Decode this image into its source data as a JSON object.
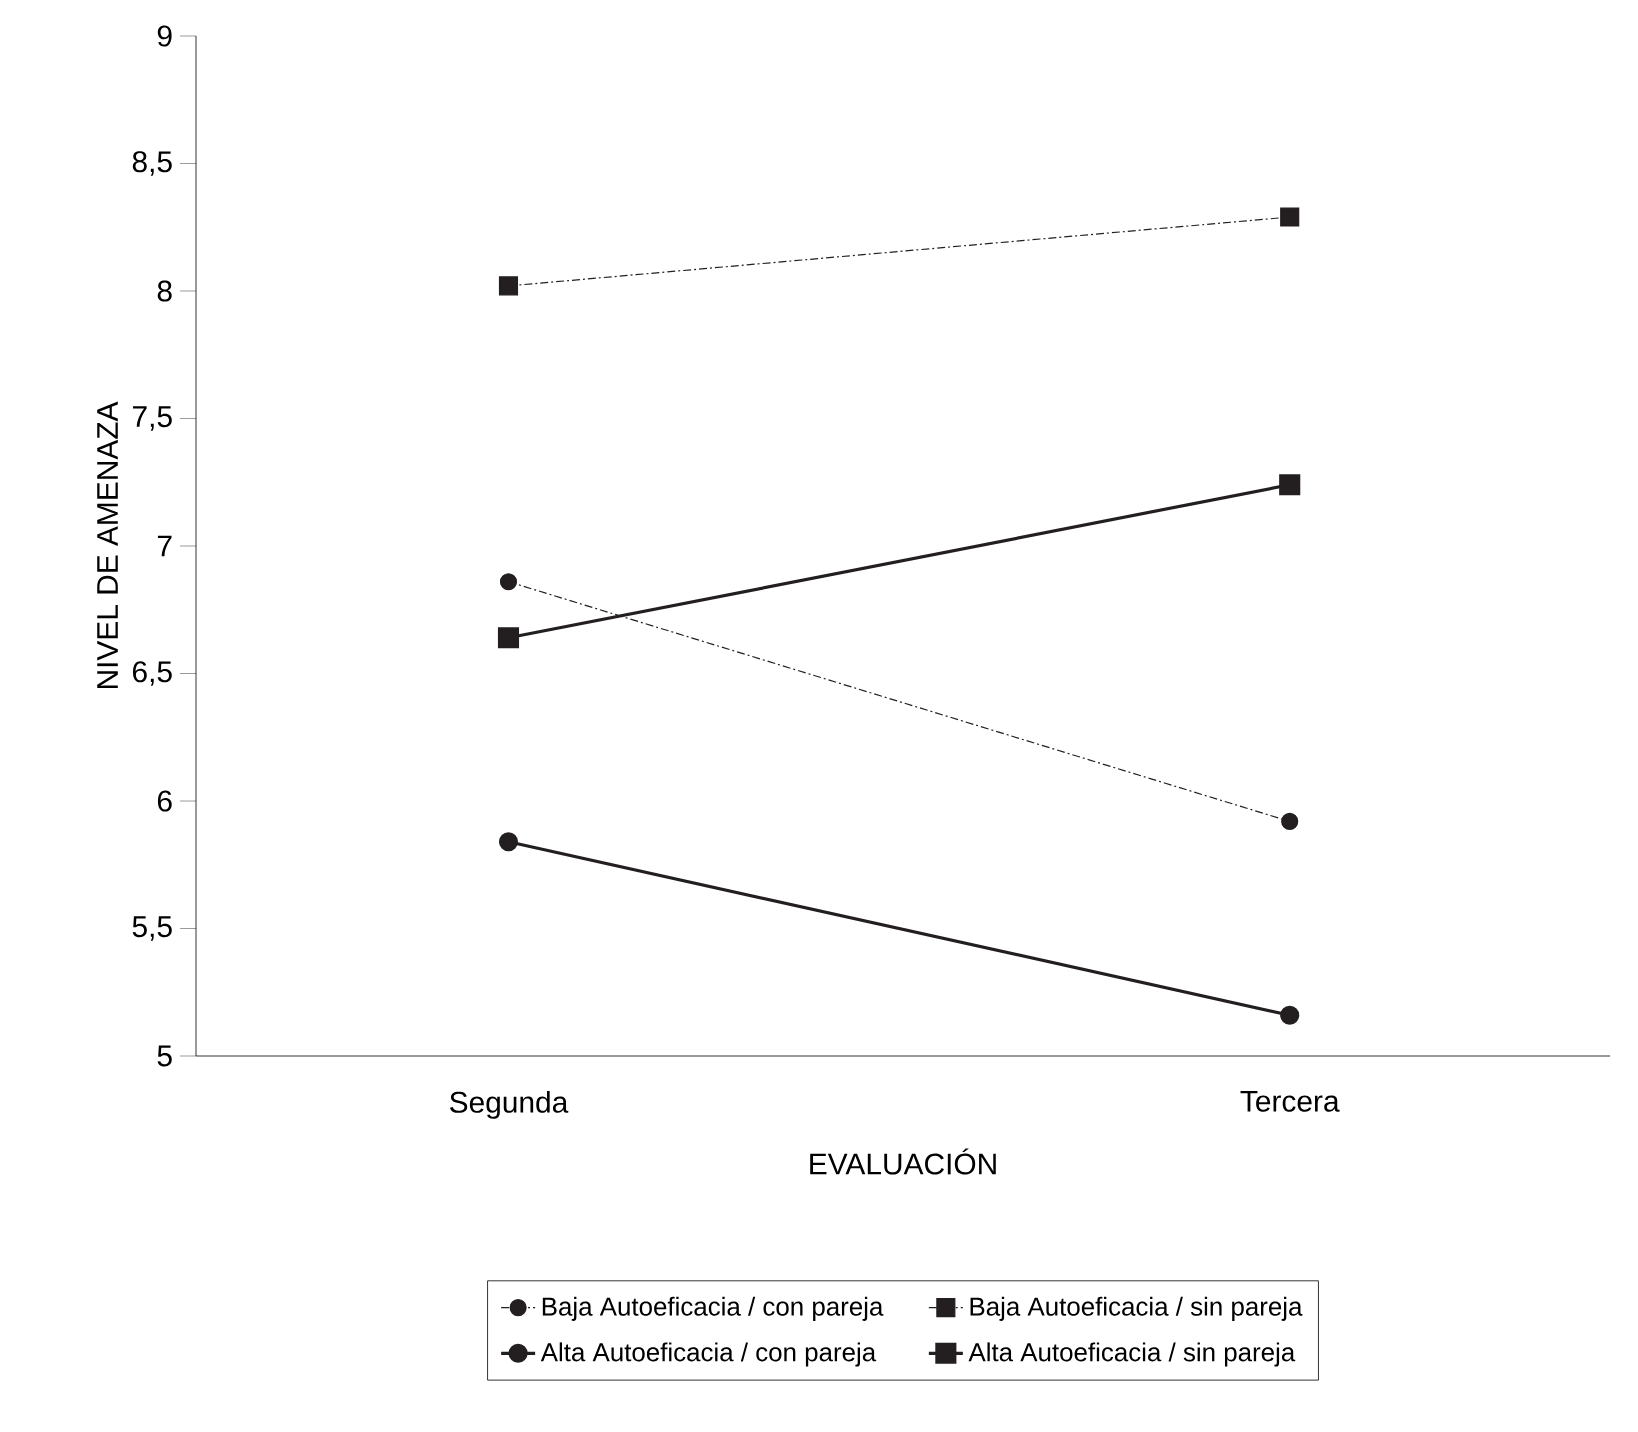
{
  "chart_data": {
    "type": "line",
    "xlabel": "EVALUACIÓN",
    "ylabel": "NIVEL DE AMENAZA",
    "categories": [
      "Segunda",
      "Tercera"
    ],
    "series": [
      {
        "name": "Baja Autoeficacia / con pareja",
        "color": "#231f20",
        "marker": "circle",
        "line_style": "dashed",
        "values": [
          6.86,
          5.92
        ]
      },
      {
        "name": "Baja Autoeficacia / sin pareja",
        "color": "#231f20",
        "marker": "square",
        "line_style": "dashed",
        "values": [
          8.02,
          8.29
        ]
      },
      {
        "name": "Alta Autoeficacia / con pareja",
        "color": "#231f20",
        "marker": "circle",
        "line_style": "solid",
        "values": [
          5.84,
          5.16
        ]
      },
      {
        "name": "Alta Autoeficacia / sin pareja",
        "color": "#231f20",
        "marker": "square",
        "line_style": "solid",
        "values": [
          6.64,
          7.24
        ]
      }
    ],
    "ylim": [
      5,
      9
    ],
    "yticks": [
      5,
      {
        "value": 5.5,
        "label": "5,5"
      },
      6,
      {
        "value": 6.5,
        "label": "6,5"
      },
      7,
      {
        "value": 7.5,
        "label": "7,5"
      },
      8,
      {
        "value": 8.5,
        "label": "8,5"
      },
      9
    ],
    "grid": false,
    "legend": "bottom"
  }
}
